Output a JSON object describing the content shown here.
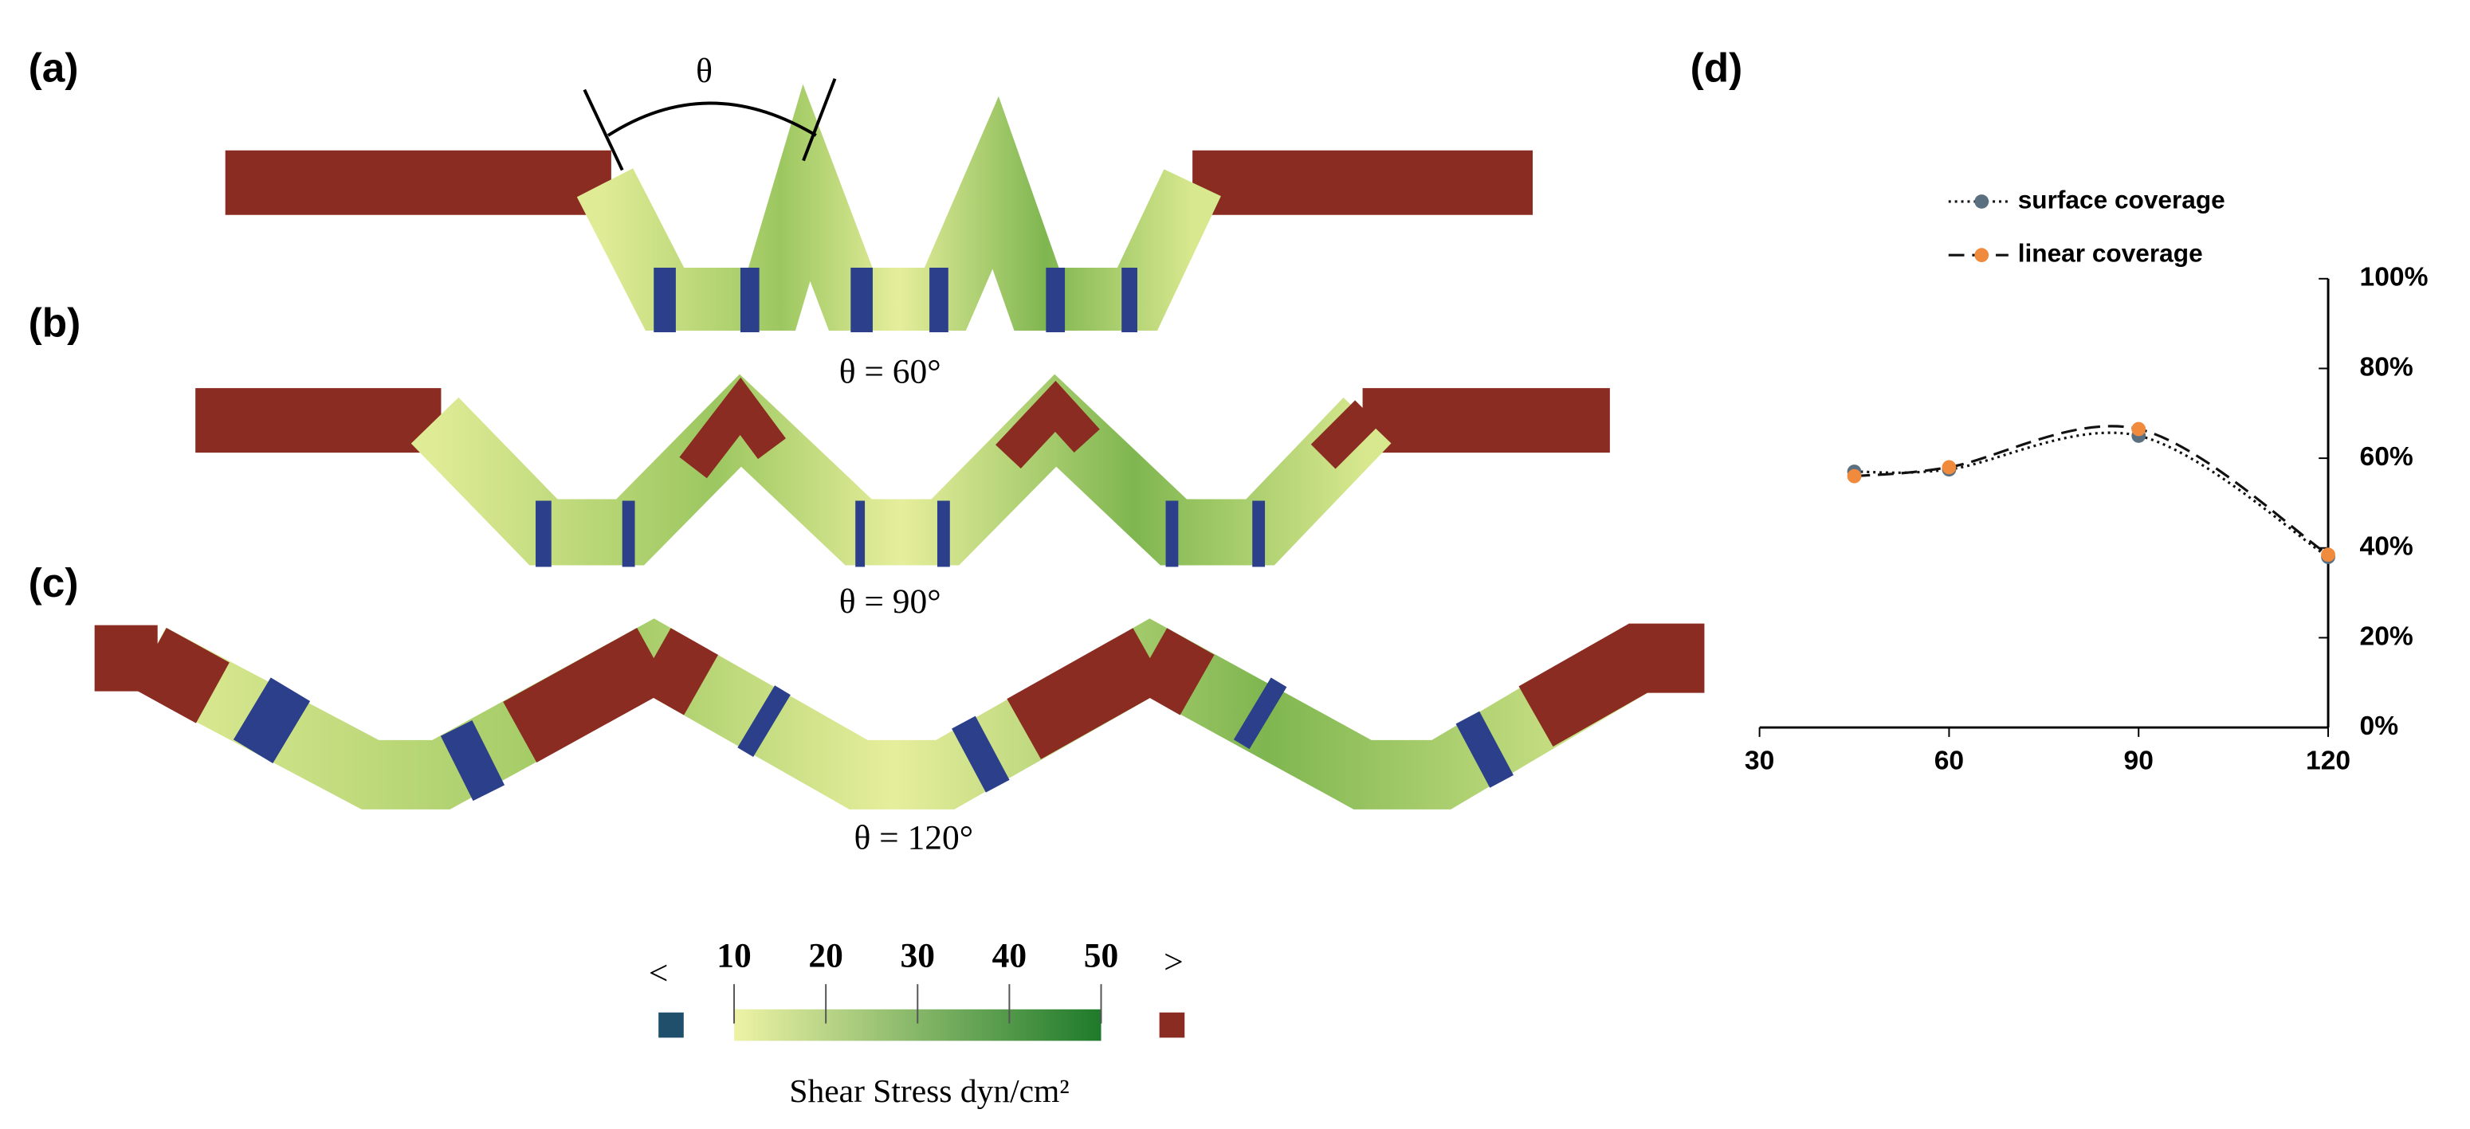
{
  "panels": {
    "a": "(a)",
    "b": "(b)",
    "c": "(c)",
    "d": "(d)"
  },
  "angle_symbol": "θ",
  "angle_labels": [
    "θ = 60°",
    "θ = 90°",
    "θ = 120°"
  ],
  "colorbar": {
    "clim": [
      10,
      50
    ],
    "ticks": [
      10,
      20,
      30,
      40,
      50
    ],
    "below": "<",
    "above": ">",
    "label": "Shear Stress dyn/cm²",
    "low_color": "#1f4f6b",
    "high_color": "#8b2c22",
    "colors": [
      "#eef3a6",
      "#1e7a2a"
    ]
  },
  "chart_data": {
    "type": "line",
    "x": [
      45,
      60,
      90,
      120
    ],
    "series": [
      {
        "name": "surface coverage",
        "color": "#5a7080",
        "style": "dotted",
        "values": [
          57,
          57.5,
          65,
          38
        ]
      },
      {
        "name": "linear coverage",
        "color": "#f08a3c",
        "style": "dashed",
        "values": [
          56,
          58,
          66.5,
          38.5
        ]
      }
    ],
    "xlim": [
      30,
      120
    ],
    "xticks": [
      30,
      60,
      90,
      120
    ],
    "ylim": [
      0,
      100
    ],
    "yticks": [
      {
        "value": 0,
        "label": "0%"
      },
      {
        "value": 20,
        "label": "20%"
      },
      {
        "value": 40,
        "label": "40%"
      },
      {
        "value": 60,
        "label": "60%"
      },
      {
        "value": 80,
        "label": "80%"
      },
      {
        "value": 100,
        "label": "100%"
      }
    ],
    "legend": "upper-left"
  }
}
